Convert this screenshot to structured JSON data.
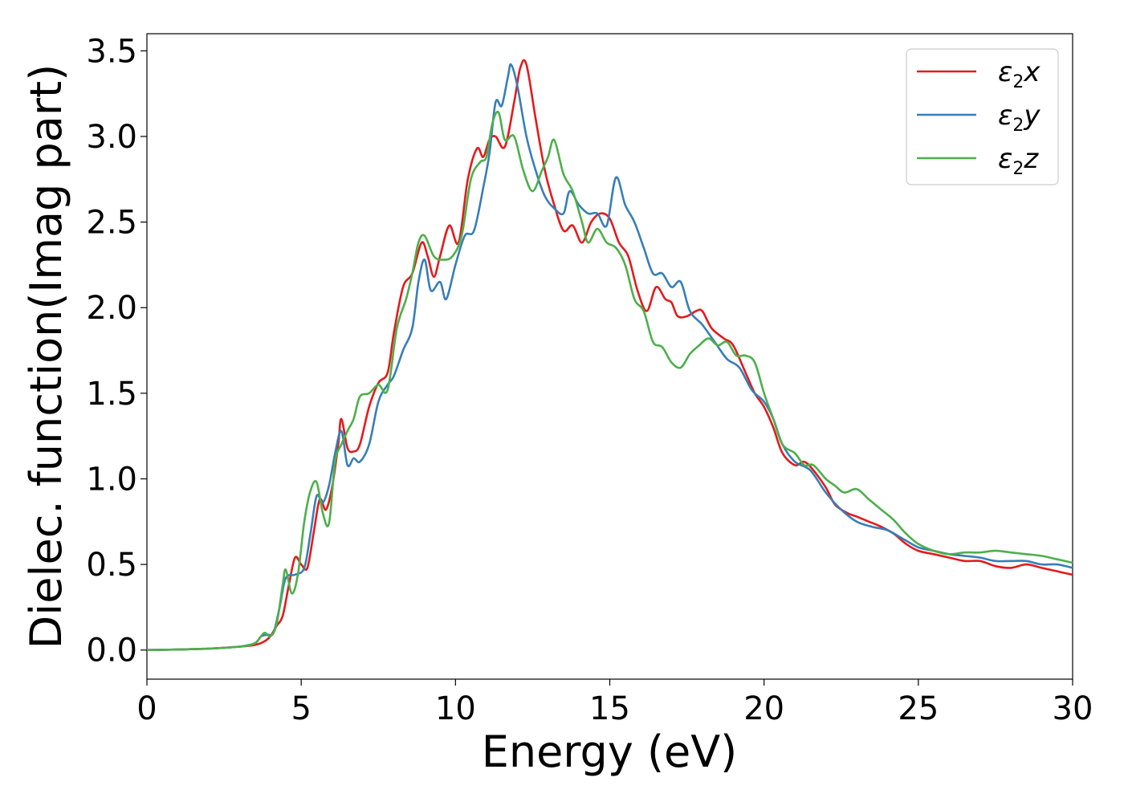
{
  "chart_data": {
    "type": "line",
    "xlabel": "Energy (eV)",
    "ylabel": "Dielec. function(Imag part)",
    "xlim": [
      0,
      30
    ],
    "ylim": [
      -0.17,
      3.6
    ],
    "x_ticks": [
      "0",
      "5",
      "10",
      "15",
      "20",
      "25",
      "30"
    ],
    "y_ticks": [
      "0.0",
      "0.5",
      "1.0",
      "1.5",
      "2.0",
      "2.5",
      "3.0",
      "3.5"
    ],
    "grid": false,
    "legend_position": "top-right",
    "series": [
      {
        "name": "ε2x",
        "legend_base": "ε",
        "legend_sub": "2",
        "legend_var": "x",
        "color": "#e41a1c",
        "points": [
          [
            0,
            0
          ],
          [
            1,
            0.003
          ],
          [
            2,
            0.008
          ],
          [
            3,
            0.02
          ],
          [
            3.5,
            0.03
          ],
          [
            3.8,
            0.05
          ],
          [
            4.0,
            0.08
          ],
          [
            4.2,
            0.14
          ],
          [
            4.4,
            0.2
          ],
          [
            4.6,
            0.38
          ],
          [
            4.8,
            0.54
          ],
          [
            5.0,
            0.5
          ],
          [
            5.2,
            0.48
          ],
          [
            5.4,
            0.68
          ],
          [
            5.6,
            0.88
          ],
          [
            5.8,
            0.82
          ],
          [
            6.0,
            0.95
          ],
          [
            6.2,
            1.2
          ],
          [
            6.3,
            1.35
          ],
          [
            6.5,
            1.18
          ],
          [
            6.7,
            1.16
          ],
          [
            6.9,
            1.2
          ],
          [
            7.2,
            1.42
          ],
          [
            7.5,
            1.56
          ],
          [
            7.8,
            1.62
          ],
          [
            8.0,
            1.85
          ],
          [
            8.3,
            2.12
          ],
          [
            8.6,
            2.2
          ],
          [
            8.9,
            2.38
          ],
          [
            9.1,
            2.3
          ],
          [
            9.3,
            2.18
          ],
          [
            9.5,
            2.3
          ],
          [
            9.8,
            2.48
          ],
          [
            10.1,
            2.38
          ],
          [
            10.4,
            2.75
          ],
          [
            10.7,
            2.93
          ],
          [
            10.9,
            2.88
          ],
          [
            11.1,
            2.98
          ],
          [
            11.3,
            3.0
          ],
          [
            11.6,
            2.94
          ],
          [
            11.9,
            3.2
          ],
          [
            12.1,
            3.4
          ],
          [
            12.3,
            3.42
          ],
          [
            12.6,
            3.1
          ],
          [
            12.9,
            2.8
          ],
          [
            13.2,
            2.6
          ],
          [
            13.5,
            2.45
          ],
          [
            13.8,
            2.48
          ],
          [
            14.1,
            2.38
          ],
          [
            14.4,
            2.5
          ],
          [
            14.7,
            2.55
          ],
          [
            15.0,
            2.52
          ],
          [
            15.3,
            2.38
          ],
          [
            15.6,
            2.3
          ],
          [
            15.9,
            2.1
          ],
          [
            16.2,
            1.98
          ],
          [
            16.5,
            2.12
          ],
          [
            16.8,
            2.05
          ],
          [
            17.0,
            2.03
          ],
          [
            17.2,
            1.95
          ],
          [
            17.5,
            1.95
          ],
          [
            17.8,
            1.98
          ],
          [
            18.0,
            1.98
          ],
          [
            18.3,
            1.88
          ],
          [
            18.7,
            1.82
          ],
          [
            19.0,
            1.78
          ],
          [
            19.4,
            1.62
          ],
          [
            19.7,
            1.5
          ],
          [
            20.0,
            1.42
          ],
          [
            20.3,
            1.3
          ],
          [
            20.6,
            1.15
          ],
          [
            21.0,
            1.08
          ],
          [
            21.3,
            1.1
          ],
          [
            21.6,
            1.05
          ],
          [
            22.0,
            0.95
          ],
          [
            22.3,
            0.85
          ],
          [
            22.7,
            0.8
          ],
          [
            23.0,
            0.78
          ],
          [
            23.4,
            0.75
          ],
          [
            23.8,
            0.72
          ],
          [
            24.2,
            0.68
          ],
          [
            24.6,
            0.62
          ],
          [
            25.0,
            0.58
          ],
          [
            25.5,
            0.56
          ],
          [
            26.0,
            0.54
          ],
          [
            26.5,
            0.52
          ],
          [
            27.0,
            0.52
          ],
          [
            27.5,
            0.49
          ],
          [
            28.0,
            0.48
          ],
          [
            28.5,
            0.5
          ],
          [
            29.0,
            0.48
          ],
          [
            29.5,
            0.46
          ],
          [
            30.0,
            0.44
          ]
        ]
      },
      {
        "name": "ε2y",
        "legend_base": "ε",
        "legend_sub": "2",
        "legend_var": "y",
        "color": "#377eb8",
        "points": [
          [
            0,
            0
          ],
          [
            1,
            0.003
          ],
          [
            2,
            0.008
          ],
          [
            3,
            0.02
          ],
          [
            3.5,
            0.04
          ],
          [
            3.7,
            0.08
          ],
          [
            3.9,
            0.09
          ],
          [
            4.1,
            0.1
          ],
          [
            4.3,
            0.25
          ],
          [
            4.5,
            0.42
          ],
          [
            4.8,
            0.44
          ],
          [
            5.1,
            0.48
          ],
          [
            5.3,
            0.68
          ],
          [
            5.5,
            0.9
          ],
          [
            5.7,
            0.86
          ],
          [
            5.9,
            0.96
          ],
          [
            6.1,
            1.15
          ],
          [
            6.3,
            1.28
          ],
          [
            6.5,
            1.08
          ],
          [
            6.7,
            1.12
          ],
          [
            6.9,
            1.1
          ],
          [
            7.2,
            1.2
          ],
          [
            7.5,
            1.45
          ],
          [
            7.8,
            1.55
          ],
          [
            8.0,
            1.6
          ],
          [
            8.3,
            1.75
          ],
          [
            8.6,
            1.88
          ],
          [
            8.8,
            2.15
          ],
          [
            9.0,
            2.28
          ],
          [
            9.2,
            2.1
          ],
          [
            9.5,
            2.15
          ],
          [
            9.7,
            2.05
          ],
          [
            10.0,
            2.25
          ],
          [
            10.3,
            2.42
          ],
          [
            10.6,
            2.45
          ],
          [
            10.9,
            2.7
          ],
          [
            11.1,
            2.9
          ],
          [
            11.3,
            3.2
          ],
          [
            11.5,
            3.18
          ],
          [
            11.7,
            3.35
          ],
          [
            11.8,
            3.42
          ],
          [
            12.0,
            3.3
          ],
          [
            12.3,
            3.0
          ],
          [
            12.6,
            2.8
          ],
          [
            12.9,
            2.65
          ],
          [
            13.2,
            2.58
          ],
          [
            13.5,
            2.55
          ],
          [
            13.7,
            2.68
          ],
          [
            14.0,
            2.6
          ],
          [
            14.3,
            2.55
          ],
          [
            14.6,
            2.55
          ],
          [
            14.9,
            2.48
          ],
          [
            15.2,
            2.76
          ],
          [
            15.5,
            2.6
          ],
          [
            15.8,
            2.5
          ],
          [
            16.1,
            2.35
          ],
          [
            16.4,
            2.2
          ],
          [
            16.7,
            2.2
          ],
          [
            17.0,
            2.12
          ],
          [
            17.3,
            2.15
          ],
          [
            17.6,
            1.98
          ],
          [
            18.0,
            1.9
          ],
          [
            18.4,
            1.8
          ],
          [
            18.8,
            1.7
          ],
          [
            19.2,
            1.65
          ],
          [
            19.6,
            1.52
          ],
          [
            20.0,
            1.45
          ],
          [
            20.3,
            1.35
          ],
          [
            20.6,
            1.2
          ],
          [
            21.0,
            1.1
          ],
          [
            21.5,
            1.05
          ],
          [
            22.0,
            0.92
          ],
          [
            22.5,
            0.82
          ],
          [
            23.0,
            0.75
          ],
          [
            23.5,
            0.72
          ],
          [
            24.0,
            0.7
          ],
          [
            24.5,
            0.65
          ],
          [
            25.0,
            0.6
          ],
          [
            25.5,
            0.58
          ],
          [
            26.0,
            0.56
          ],
          [
            26.5,
            0.55
          ],
          [
            27.0,
            0.54
          ],
          [
            27.5,
            0.52
          ],
          [
            28.0,
            0.52
          ],
          [
            28.5,
            0.52
          ],
          [
            29.0,
            0.5
          ],
          [
            29.5,
            0.5
          ],
          [
            30.0,
            0.48
          ]
        ]
      },
      {
        "name": "ε2z",
        "legend_base": "ε",
        "legend_sub": "2",
        "legend_var": "z",
        "color": "#4daf4a",
        "points": [
          [
            0,
            0
          ],
          [
            1,
            0.003
          ],
          [
            2,
            0.008
          ],
          [
            3,
            0.02
          ],
          [
            3.5,
            0.04
          ],
          [
            3.8,
            0.1
          ],
          [
            4.0,
            0.08
          ],
          [
            4.2,
            0.15
          ],
          [
            4.4,
            0.38
          ],
          [
            4.5,
            0.47
          ],
          [
            4.7,
            0.33
          ],
          [
            4.9,
            0.45
          ],
          [
            5.1,
            0.75
          ],
          [
            5.3,
            0.93
          ],
          [
            5.5,
            0.98
          ],
          [
            5.7,
            0.8
          ],
          [
            5.9,
            0.74
          ],
          [
            6.1,
            1.1
          ],
          [
            6.3,
            1.2
          ],
          [
            6.5,
            1.28
          ],
          [
            6.7,
            1.35
          ],
          [
            6.9,
            1.48
          ],
          [
            7.2,
            1.5
          ],
          [
            7.5,
            1.55
          ],
          [
            7.8,
            1.52
          ],
          [
            8.1,
            1.88
          ],
          [
            8.4,
            2.05
          ],
          [
            8.6,
            2.2
          ],
          [
            8.8,
            2.38
          ],
          [
            9.0,
            2.42
          ],
          [
            9.3,
            2.3
          ],
          [
            9.6,
            2.28
          ],
          [
            9.9,
            2.3
          ],
          [
            10.2,
            2.42
          ],
          [
            10.5,
            2.75
          ],
          [
            10.8,
            2.85
          ],
          [
            11.0,
            2.88
          ],
          [
            11.2,
            3.08
          ],
          [
            11.4,
            3.14
          ],
          [
            11.6,
            2.98
          ],
          [
            11.9,
            3.0
          ],
          [
            12.2,
            2.8
          ],
          [
            12.5,
            2.68
          ],
          [
            12.8,
            2.8
          ],
          [
            13.0,
            2.88
          ],
          [
            13.2,
            2.98
          ],
          [
            13.5,
            2.78
          ],
          [
            13.8,
            2.68
          ],
          [
            14.1,
            2.5
          ],
          [
            14.3,
            2.38
          ],
          [
            14.6,
            2.46
          ],
          [
            14.9,
            2.38
          ],
          [
            15.2,
            2.35
          ],
          [
            15.5,
            2.25
          ],
          [
            15.8,
            2.05
          ],
          [
            16.1,
            1.98
          ],
          [
            16.4,
            1.8
          ],
          [
            16.7,
            1.77
          ],
          [
            17.0,
            1.68
          ],
          [
            17.3,
            1.65
          ],
          [
            17.6,
            1.73
          ],
          [
            17.9,
            1.78
          ],
          [
            18.2,
            1.82
          ],
          [
            18.5,
            1.78
          ],
          [
            18.8,
            1.8
          ],
          [
            19.1,
            1.72
          ],
          [
            19.4,
            1.72
          ],
          [
            19.7,
            1.68
          ],
          [
            20.0,
            1.5
          ],
          [
            20.3,
            1.35
          ],
          [
            20.6,
            1.2
          ],
          [
            21.0,
            1.15
          ],
          [
            21.3,
            1.08
          ],
          [
            21.6,
            1.08
          ],
          [
            22.0,
            1.0
          ],
          [
            22.3,
            0.96
          ],
          [
            22.6,
            0.92
          ],
          [
            23.0,
            0.94
          ],
          [
            23.4,
            0.88
          ],
          [
            23.8,
            0.82
          ],
          [
            24.2,
            0.76
          ],
          [
            24.6,
            0.68
          ],
          [
            25.0,
            0.62
          ],
          [
            25.5,
            0.58
          ],
          [
            26.0,
            0.56
          ],
          [
            26.5,
            0.57
          ],
          [
            27.0,
            0.57
          ],
          [
            27.5,
            0.58
          ],
          [
            28.0,
            0.57
          ],
          [
            28.5,
            0.56
          ],
          [
            29.0,
            0.55
          ],
          [
            29.5,
            0.53
          ],
          [
            30.0,
            0.51
          ]
        ]
      }
    ]
  }
}
